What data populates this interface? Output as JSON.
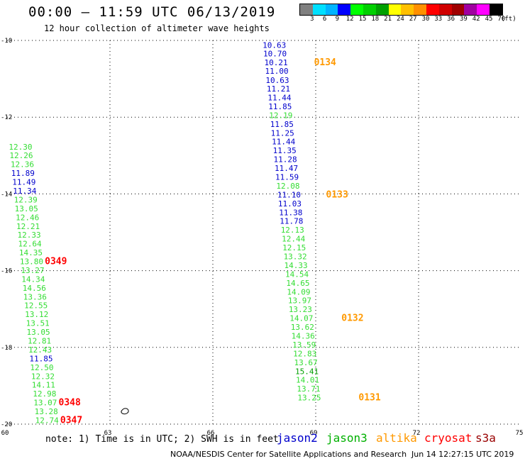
{
  "header": {
    "title": "00:00 – 11:59 UTC 06/13/2019",
    "subtitle": "12 hour collection of altimeter wave heights"
  },
  "colorbar": {
    "unit": "(ft)",
    "labels": [
      "3",
      "6",
      "9",
      "12",
      "15",
      "18",
      "21",
      "24",
      "27",
      "30",
      "33",
      "36",
      "39",
      "42",
      "45",
      "70"
    ],
    "colors": [
      "#808080",
      "#00e0ff",
      "#00b4ff",
      "#0000ff",
      "#00ff00",
      "#00d000",
      "#00a000",
      "#ffff00",
      "#ffc000",
      "#ff9000",
      "#ff0000",
      "#d00000",
      "#a00000",
      "#a000a0",
      "#ff00ff",
      "#000000"
    ]
  },
  "note": "note: 1) Time is in UTC; 2) SWH is in feet",
  "legend": [
    {
      "name": "jason2",
      "color": "#0000cc"
    },
    {
      "name": "jason3",
      "color": "#00b000"
    },
    {
      "name": "altika",
      "color": "#ff9900"
    },
    {
      "name": "cryosat",
      "color": "#ff0000"
    },
    {
      "name": "s3a",
      "color": "#990000"
    }
  ],
  "footer": {
    "credit": "NOAA/NESDIS Center for Satellite Applications and Research",
    "timestamp": "Jun 14 12:27:15 UTC 2019"
  },
  "chart_data": {
    "type": "scatter",
    "title": "00:00 – 11:59 UTC 06/13/2019",
    "subtitle": "12 hour collection of altimeter wave heights",
    "xlabel": "",
    "ylabel": "",
    "xlim": [
      60,
      75
    ],
    "ylim": [
      -20,
      -10
    ],
    "x_ticks": [
      60,
      63,
      66,
      69,
      72,
      75
    ],
    "y_ticks": [
      -10,
      -12,
      -14,
      -16,
      -18,
      -20
    ],
    "x_tick_labels": [
      "60",
      "63",
      "66",
      "69",
      "72",
      "75"
    ],
    "y_tick_labels": [
      "-10",
      "-12",
      "-14",
      "-16",
      "-18",
      "-20"
    ],
    "grid": true,
    "points": [
      {
        "x": 67.45,
        "y": -10.1,
        "label": "10.63",
        "color": "#0000cc"
      },
      {
        "x": 67.47,
        "y": -10.32,
        "label": "10.70",
        "color": "#0000cc"
      },
      {
        "x": 67.5,
        "y": -10.55,
        "label": "10.21",
        "color": "#0000cc"
      },
      {
        "x": 67.52,
        "y": -10.78,
        "label": "11.00",
        "color": "#0000cc"
      },
      {
        "x": 67.54,
        "y": -11.02,
        "label": "10.63",
        "color": "#0000cc"
      },
      {
        "x": 67.57,
        "y": -11.24,
        "label": "11.21",
        "color": "#0000cc"
      },
      {
        "x": 67.6,
        "y": -11.47,
        "label": "11.44",
        "color": "#0000cc"
      },
      {
        "x": 67.62,
        "y": -11.7,
        "label": "11.85",
        "color": "#0000cc"
      },
      {
        "x": 67.64,
        "y": -11.93,
        "label": "12.19",
        "color": "#33dd33"
      },
      {
        "x": 67.67,
        "y": -12.16,
        "label": "11.85",
        "color": "#0000cc"
      },
      {
        "x": 67.69,
        "y": -12.39,
        "label": "11.25",
        "color": "#0000cc"
      },
      {
        "x": 67.72,
        "y": -12.62,
        "label": "11.44",
        "color": "#0000cc"
      },
      {
        "x": 67.75,
        "y": -12.85,
        "label": "11.35",
        "color": "#0000cc"
      },
      {
        "x": 67.77,
        "y": -13.08,
        "label": "11.28",
        "color": "#0000cc"
      },
      {
        "x": 67.8,
        "y": -13.31,
        "label": "11.47",
        "color": "#0000cc"
      },
      {
        "x": 67.82,
        "y": -13.54,
        "label": "11.59",
        "color": "#0000cc"
      },
      {
        "x": 67.85,
        "y": -13.77,
        "label": "12.08",
        "color": "#33dd33"
      },
      {
        "x": 67.88,
        "y": -14.0,
        "label": "11.10",
        "color": "#0000cc"
      },
      {
        "x": 67.9,
        "y": -14.23,
        "label": "11.03",
        "color": "#0000cc"
      },
      {
        "x": 67.93,
        "y": -14.46,
        "label": "11.38",
        "color": "#0000cc"
      },
      {
        "x": 67.95,
        "y": -14.69,
        "label": "11.78",
        "color": "#0000cc"
      },
      {
        "x": 67.98,
        "y": -14.92,
        "label": "12.13",
        "color": "#33dd33"
      },
      {
        "x": 68.01,
        "y": -15.15,
        "label": "12.44",
        "color": "#33dd33"
      },
      {
        "x": 68.03,
        "y": -15.38,
        "label": "12.15",
        "color": "#33dd33"
      },
      {
        "x": 68.06,
        "y": -15.61,
        "label": "13.32",
        "color": "#33dd33"
      },
      {
        "x": 68.08,
        "y": -15.84,
        "label": "14.33",
        "color": "#33dd33"
      },
      {
        "x": 68.11,
        "y": -16.07,
        "label": "14.54",
        "color": "#33dd33"
      },
      {
        "x": 68.14,
        "y": -16.3,
        "label": "14.65",
        "color": "#33dd33"
      },
      {
        "x": 68.16,
        "y": -16.53,
        "label": "14.09",
        "color": "#33dd33"
      },
      {
        "x": 68.19,
        "y": -16.76,
        "label": "13.97",
        "color": "#33dd33"
      },
      {
        "x": 68.21,
        "y": -16.99,
        "label": "13.23",
        "color": "#33dd33"
      },
      {
        "x": 68.24,
        "y": -17.22,
        "label": "14.07",
        "color": "#33dd33"
      },
      {
        "x": 68.27,
        "y": -17.45,
        "label": "13.62",
        "color": "#33dd33"
      },
      {
        "x": 68.29,
        "y": -17.68,
        "label": "14.36",
        "color": "#33dd33"
      },
      {
        "x": 68.32,
        "y": -17.91,
        "label": "13.59",
        "color": "#33dd33"
      },
      {
        "x": 68.34,
        "y": -18.14,
        "label": "12.83",
        "color": "#33dd33"
      },
      {
        "x": 68.37,
        "y": -18.37,
        "label": "13.67",
        "color": "#33dd33"
      },
      {
        "x": 68.4,
        "y": -18.6,
        "label": "15.41",
        "color": "#00a000"
      },
      {
        "x": 68.42,
        "y": -18.83,
        "label": "14.01",
        "color": "#33dd33"
      },
      {
        "x": 68.45,
        "y": -19.06,
        "label": "13.71",
        "color": "#33dd33"
      },
      {
        "x": 68.47,
        "y": -19.29,
        "label": "13.25",
        "color": "#33dd33"
      },
      {
        "x": 60.05,
        "y": -12.75,
        "label": "12.30",
        "color": "#33dd33"
      },
      {
        "x": 60.07,
        "y": -12.98,
        "label": "12.26",
        "color": "#33dd33"
      },
      {
        "x": 60.1,
        "y": -13.21,
        "label": "12.36",
        "color": "#33dd33"
      },
      {
        "x": 60.12,
        "y": -13.44,
        "label": "11.89",
        "color": "#0000cc"
      },
      {
        "x": 60.15,
        "y": -13.67,
        "label": "11.49",
        "color": "#0000cc"
      },
      {
        "x": 60.17,
        "y": -13.9,
        "label": "11.34",
        "color": "#0000cc"
      },
      {
        "x": 60.2,
        "y": -14.13,
        "label": "12.39",
        "color": "#33dd33"
      },
      {
        "x": 60.22,
        "y": -14.36,
        "label": "13.05",
        "color": "#33dd33"
      },
      {
        "x": 60.25,
        "y": -14.59,
        "label": "12.46",
        "color": "#33dd33"
      },
      {
        "x": 60.27,
        "y": -14.82,
        "label": "12.21",
        "color": "#33dd33"
      },
      {
        "x": 60.3,
        "y": -15.05,
        "label": "12.33",
        "color": "#33dd33"
      },
      {
        "x": 60.32,
        "y": -15.28,
        "label": "12.64",
        "color": "#33dd33"
      },
      {
        "x": 60.35,
        "y": -15.51,
        "label": "14.35",
        "color": "#33dd33"
      },
      {
        "x": 60.37,
        "y": -15.74,
        "label": "13.80",
        "color": "#33dd33"
      },
      {
        "x": 60.4,
        "y": -15.97,
        "label": "13.27",
        "color": "#33dd33"
      },
      {
        "x": 60.42,
        "y": -16.2,
        "label": "14.34",
        "color": "#33dd33"
      },
      {
        "x": 60.45,
        "y": -16.43,
        "label": "14.56",
        "color": "#33dd33"
      },
      {
        "x": 60.47,
        "y": -16.66,
        "label": "13.36",
        "color": "#33dd33"
      },
      {
        "x": 60.5,
        "y": -16.89,
        "label": "12.55",
        "color": "#33dd33"
      },
      {
        "x": 60.52,
        "y": -17.12,
        "label": "13.12",
        "color": "#33dd33"
      },
      {
        "x": 60.55,
        "y": -17.35,
        "label": "13.51",
        "color": "#33dd33"
      },
      {
        "x": 60.57,
        "y": -17.58,
        "label": "13.05",
        "color": "#33dd33"
      },
      {
        "x": 60.6,
        "y": -17.81,
        "label": "12.81",
        "color": "#33dd33"
      },
      {
        "x": 60.62,
        "y": -18.04,
        "label": "12.43",
        "color": "#33dd33"
      },
      {
        "x": 60.65,
        "y": -18.27,
        "label": "11.85",
        "color": "#0000cc"
      },
      {
        "x": 60.67,
        "y": -18.5,
        "label": "12.50",
        "color": "#33dd33"
      },
      {
        "x": 60.7,
        "y": -18.73,
        "label": "12.32",
        "color": "#33dd33"
      },
      {
        "x": 60.72,
        "y": -18.96,
        "label": "14.11",
        "color": "#33dd33"
      },
      {
        "x": 60.75,
        "y": -19.19,
        "label": "12.98",
        "color": "#33dd33"
      },
      {
        "x": 60.77,
        "y": -19.42,
        "label": "13.07",
        "color": "#33dd33"
      },
      {
        "x": 60.8,
        "y": -19.65,
        "label": "13.28",
        "color": "#33dd33"
      },
      {
        "x": 60.82,
        "y": -19.88,
        "label": "12.74",
        "color": "#33dd33"
      }
    ],
    "time_markers": [
      {
        "x": 68.95,
        "y": -10.55,
        "label": "0134",
        "color": "#ff9900"
      },
      {
        "x": 69.3,
        "y": -14.0,
        "label": "0133",
        "color": "#ff9900"
      },
      {
        "x": 69.75,
        "y": -17.22,
        "label": "0132",
        "color": "#ff9900"
      },
      {
        "x": 70.25,
        "y": -19.29,
        "label": "0131",
        "color": "#ff9900"
      },
      {
        "x": 61.1,
        "y": -15.74,
        "label": "0349",
        "color": "#ff0000"
      },
      {
        "x": 61.5,
        "y": -19.42,
        "label": "0348",
        "color": "#ff0000"
      },
      {
        "x": 61.55,
        "y": -19.88,
        "label": "0347",
        "color": "#ff0000"
      }
    ]
  }
}
